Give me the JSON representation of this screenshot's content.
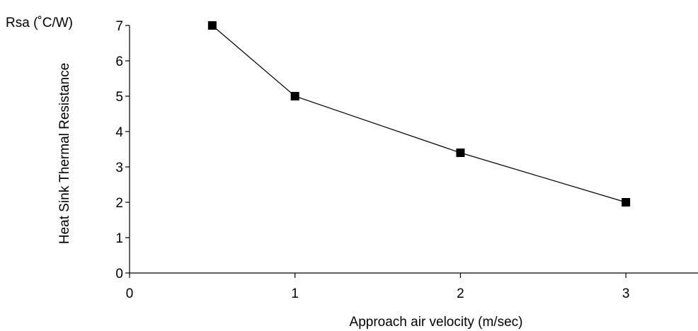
{
  "chart_data": {
    "type": "line",
    "xlabel": "Approach air velocity (m/sec)",
    "ylabel": "Heat Sink Thermal Resistance",
    "y_unit_label": "Rsa (˚C/W)",
    "xlim": [
      0,
      3.5
    ],
    "ylim": [
      0,
      7
    ],
    "x_ticks": [
      0,
      1,
      2,
      3
    ],
    "y_ticks": [
      0,
      1,
      2,
      3,
      4,
      5,
      6,
      7
    ],
    "grid": false,
    "marker": "square",
    "series": [
      {
        "x": [
          0.5,
          1,
          2,
          3
        ],
        "y": [
          7,
          5,
          3.4,
          2
        ]
      }
    ],
    "colors": {
      "line": "#000000",
      "marker": "#000000",
      "axis": "#000000"
    }
  }
}
